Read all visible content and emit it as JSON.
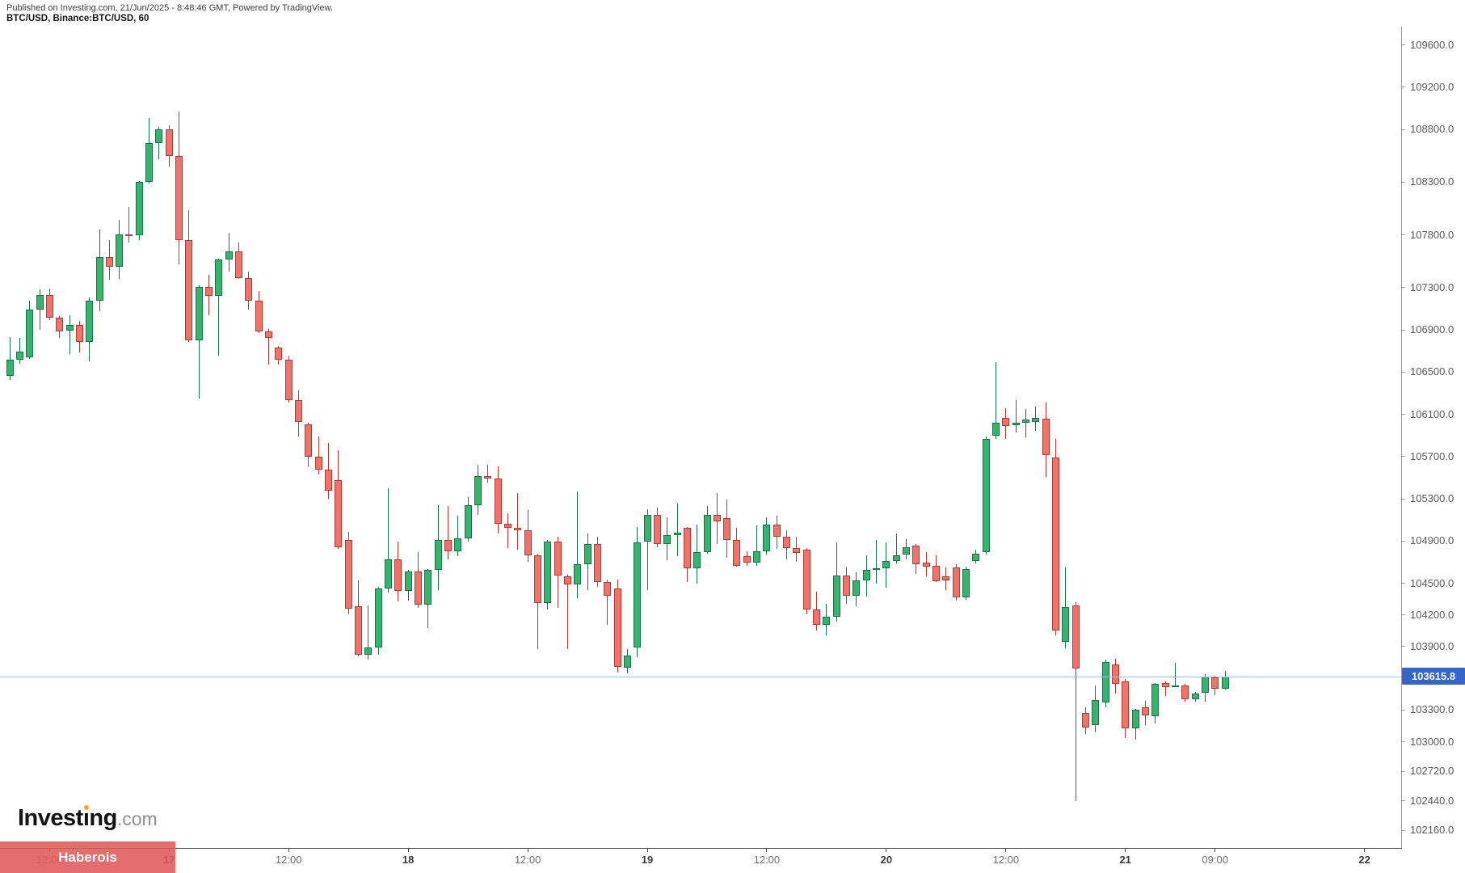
{
  "header": {
    "published_line": "Published on Investing.com, 21/Jun/2025 - 8:48:46 GMT, Powered by TradingView.",
    "symbol_line": "BTC/USD, Binance:BTC/USD, 60"
  },
  "watermark": {
    "logo_text": "Investing.com",
    "logo_part1": "Invest",
    "logo_dot_char": "ı",
    "logo_part2": "ng",
    "logo_suffix": ".com",
    "overlay_label": "Haberois"
  },
  "axes": {
    "price_ticks": [
      {
        "label": "109600.0",
        "price": 109600
      },
      {
        "label": "109200.0",
        "price": 109200
      },
      {
        "label": "108800.0",
        "price": 108800
      },
      {
        "label": "108300.0",
        "price": 108300
      },
      {
        "label": "107800.0",
        "price": 107800
      },
      {
        "label": "107300.0",
        "price": 107300
      },
      {
        "label": "106900.0",
        "price": 106900
      },
      {
        "label": "106500.0",
        "price": 106500
      },
      {
        "label": "106100.0",
        "price": 106100
      },
      {
        "label": "105700.0",
        "price": 105700
      },
      {
        "label": "105300.0",
        "price": 105300
      },
      {
        "label": "104900.0",
        "price": 104900
      },
      {
        "label": "104500.0",
        "price": 104500
      },
      {
        "label": "104200.0",
        "price": 104200
      },
      {
        "label": "103900.0",
        "price": 103900
      },
      {
        "label": "103300.0",
        "price": 103300
      },
      {
        "label": "103000.0",
        "price": 103000
      },
      {
        "label": "102720.0",
        "price": 102720
      },
      {
        "label": "102440.0",
        "price": 102440
      },
      {
        "label": "102160.0",
        "price": 102160
      }
    ],
    "time_ticks": [
      {
        "label": "12:00",
        "hour": 4,
        "major": false
      },
      {
        "label": "17",
        "hour": 16,
        "major": true
      },
      {
        "label": "12:00",
        "hour": 28,
        "major": false
      },
      {
        "label": "18",
        "hour": 40,
        "major": true
      },
      {
        "label": "12:00",
        "hour": 52,
        "major": false
      },
      {
        "label": "19",
        "hour": 64,
        "major": true
      },
      {
        "label": "12:00",
        "hour": 76,
        "major": false
      },
      {
        "label": "20",
        "hour": 88,
        "major": true
      },
      {
        "label": "12:00",
        "hour": 100,
        "major": false
      },
      {
        "label": "21",
        "hour": 112,
        "major": true
      },
      {
        "label": "09:00",
        "hour": 121,
        "major": false
      },
      {
        "label": "22",
        "hour": 136,
        "major": true
      }
    ],
    "last_price": {
      "label": "103615.8",
      "price": 103615.8
    }
  },
  "colors": {
    "up_fill": "#36b46e",
    "up_stroke": "#17734b",
    "down_fill": "#f0726b",
    "down_stroke": "#b33b33",
    "last_price_line": "#a6c3e8",
    "last_price_badge": "#3465cb",
    "overlay_badge": "rgba(224,90,90,0.88)",
    "logo_dot": "#f5a623"
  },
  "chart_data": {
    "type": "candlestick",
    "title": "BTC/USD, Binance:BTC/USD, 60",
    "symbol": "BTC/USD",
    "exchange": "Binance",
    "interval_minutes": 60,
    "start_time": "16/Jun/2025 08:00",
    "interval_hours": 1,
    "last_price": 103615.8,
    "ylim": [
      102160,
      109600
    ],
    "legend_position": "none",
    "grid": false,
    "ohlc": [
      [
        106460,
        106830,
        106420,
        106615
      ],
      [
        106615,
        106820,
        106575,
        106690
      ],
      [
        106640,
        107170,
        106620,
        107090
      ],
      [
        107090,
        107280,
        106900,
        107230
      ],
      [
        107230,
        107290,
        106985,
        107010
      ],
      [
        107010,
        107025,
        106820,
        106885
      ],
      [
        106885,
        107035,
        106665,
        106945
      ],
      [
        106945,
        106985,
        106680,
        106780
      ],
      [
        106780,
        107200,
        106600,
        107170
      ],
      [
        107170,
        107845,
        107070,
        107585
      ],
      [
        107585,
        107750,
        107370,
        107495
      ],
      [
        107495,
        107940,
        107380,
        107800
      ],
      [
        107800,
        108060,
        107725,
        107795
      ],
      [
        107795,
        108310,
        107750,
        108300
      ],
      [
        108300,
        108900,
        108280,
        108665
      ],
      [
        108665,
        108820,
        108515,
        108800
      ],
      [
        108800,
        108835,
        108440,
        108545
      ],
      [
        108545,
        108965,
        107520,
        107750
      ],
      [
        107750,
        108030,
        106780,
        106795
      ],
      [
        106795,
        107315,
        106245,
        107300
      ],
      [
        107300,
        107420,
        107035,
        107215
      ],
      [
        107215,
        107570,
        106650,
        107560
      ],
      [
        107560,
        107815,
        107445,
        107640
      ],
      [
        107640,
        107725,
        107380,
        107390
      ],
      [
        107390,
        107445,
        107085,
        107175
      ],
      [
        107175,
        107265,
        106870,
        106880
      ],
      [
        106880,
        106905,
        106565,
        106820
      ],
      [
        106730,
        106745,
        106565,
        106615
      ],
      [
        106615,
        106650,
        106205,
        106230
      ],
      [
        106230,
        106320,
        105890,
        106020
      ],
      [
        106000,
        106020,
        105605,
        105695
      ],
      [
        105695,
        105890,
        105530,
        105570
      ],
      [
        105570,
        105825,
        105300,
        105375
      ],
      [
        105470,
        105760,
        104820,
        104835
      ],
      [
        104910,
        104980,
        104200,
        104255
      ],
      [
        104280,
        104520,
        103805,
        103820
      ],
      [
        103820,
        104290,
        103775,
        103885
      ],
      [
        103885,
        104460,
        103820,
        104445
      ],
      [
        104445,
        105400,
        104405,
        104725
      ],
      [
        104725,
        104890,
        104320,
        104420
      ],
      [
        104420,
        104625,
        104330,
        104610
      ],
      [
        104610,
        104790,
        104265,
        104290
      ],
      [
        104290,
        104630,
        104075,
        104625
      ],
      [
        104625,
        105235,
        104430,
        104910
      ],
      [
        104910,
        105225,
        104725,
        104800
      ],
      [
        104800,
        105135,
        104750,
        104920
      ],
      [
        104920,
        105315,
        104890,
        105235
      ],
      [
        105235,
        105620,
        105145,
        105510
      ],
      [
        105510,
        105620,
        105450,
        105485
      ],
      [
        105485,
        105600,
        104970,
        105060
      ],
      [
        105060,
        105160,
        104830,
        105020
      ],
      [
        105020,
        105350,
        104815,
        104995
      ],
      [
        104995,
        105190,
        104700,
        104760
      ],
      [
        104760,
        104780,
        103870,
        104305
      ],
      [
        104305,
        104905,
        104250,
        104890
      ],
      [
        104890,
        104940,
        104265,
        104565
      ],
      [
        104565,
        104575,
        103870,
        104485
      ],
      [
        104485,
        105365,
        104355,
        104675
      ],
      [
        104675,
        104970,
        104430,
        104865
      ],
      [
        104865,
        104940,
        104460,
        104510
      ],
      [
        104510,
        104535,
        104100,
        104375
      ],
      [
        104445,
        104535,
        103650,
        103700
      ],
      [
        103700,
        103870,
        103640,
        103810
      ],
      [
        103885,
        105030,
        103795,
        104880
      ],
      [
        104890,
        105200,
        104430,
        105145
      ],
      [
        105145,
        105210,
        104840,
        104865
      ],
      [
        104865,
        105120,
        104715,
        104955
      ],
      [
        104955,
        105250,
        104750,
        104975
      ],
      [
        105020,
        105030,
        104510,
        104635
      ],
      [
        104635,
        105055,
        104495,
        104790
      ],
      [
        104790,
        105225,
        104775,
        105145
      ],
      [
        105145,
        105350,
        104865,
        105085
      ],
      [
        105110,
        105290,
        104740,
        104905
      ],
      [
        104905,
        105020,
        104650,
        104660
      ],
      [
        104750,
        104800,
        104660,
        104690
      ],
      [
        104690,
        105045,
        104660,
        104800
      ],
      [
        104800,
        105120,
        104765,
        105055
      ],
      [
        105055,
        105135,
        104825,
        104940
      ],
      [
        104940,
        104995,
        104725,
        104830
      ],
      [
        104830,
        104940,
        104700,
        104785
      ],
      [
        104815,
        104830,
        104200,
        104250
      ],
      [
        104250,
        104420,
        104050,
        104100
      ],
      [
        104100,
        104300,
        104000,
        104180
      ],
      [
        104180,
        104880,
        104130,
        104570
      ],
      [
        104570,
        104650,
        104300,
        104380
      ],
      [
        104380,
        104600,
        104280,
        104520
      ],
      [
        104520,
        104765,
        104370,
        104620
      ],
      [
        104620,
        104905,
        104495,
        104635
      ],
      [
        104635,
        104880,
        104455,
        104710
      ],
      [
        104710,
        104970,
        104685,
        104765
      ],
      [
        104765,
        104915,
        104725,
        104840
      ],
      [
        104855,
        104865,
        104585,
        104675
      ],
      [
        104690,
        104790,
        104560,
        104650
      ],
      [
        104665,
        104765,
        104510,
        104515
      ],
      [
        104560,
        104650,
        104430,
        104520
      ],
      [
        104645,
        104675,
        104330,
        104360
      ],
      [
        104360,
        104655,
        104340,
        104630
      ],
      [
        104705,
        104815,
        104680,
        104775
      ],
      [
        104790,
        105890,
        104765,
        105860
      ],
      [
        105890,
        106590,
        105860,
        106015
      ],
      [
        106060,
        106155,
        105860,
        105985
      ],
      [
        105990,
        106230,
        105925,
        106020
      ],
      [
        106015,
        106145,
        105875,
        106050
      ],
      [
        106025,
        106170,
        105940,
        106065
      ],
      [
        106055,
        106205,
        105505,
        105710
      ],
      [
        105690,
        105860,
        104000,
        104050
      ],
      [
        103940,
        104650,
        103880,
        104270
      ],
      [
        104290,
        104320,
        102430,
        103690
      ],
      [
        103270,
        103320,
        103065,
        103130
      ],
      [
        103155,
        103525,
        103080,
        103390
      ],
      [
        103365,
        103775,
        103320,
        103750
      ],
      [
        103730,
        103780,
        103450,
        103545
      ],
      [
        103570,
        103590,
        103030,
        103120
      ],
      [
        103120,
        103310,
        103015,
        103300
      ],
      [
        103320,
        103385,
        103155,
        103245
      ],
      [
        103235,
        103555,
        103170,
        103545
      ],
      [
        103550,
        103570,
        103425,
        103515
      ],
      [
        103520,
        103745,
        103510,
        103530
      ],
      [
        103525,
        103545,
        103375,
        103400
      ],
      [
        103400,
        103470,
        103375,
        103450
      ],
      [
        103460,
        103635,
        103375,
        103615
      ],
      [
        103605,
        103620,
        103435,
        103500
      ],
      [
        103500,
        103665,
        103490,
        103615.8
      ]
    ]
  }
}
